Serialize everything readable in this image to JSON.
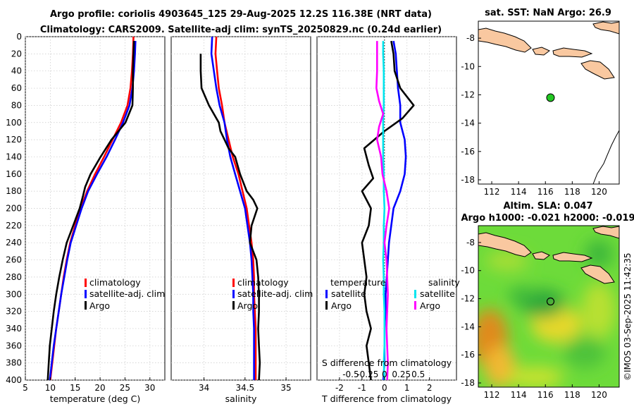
{
  "header": {
    "title_line1": "Argo profile: coriolis 4903645_125 29-Aug-2025 12.2S 116.38E (NRT data)",
    "title_line2": "Climatology: CARS2009. Satellite-adj clim: synTS_20250829.nc (0.24d earlier)"
  },
  "colors": {
    "climatology": "#ff0000",
    "satellite": "#0000ff",
    "argo": "#000000",
    "sat_salinity": "#00e5ee",
    "argo_salinity": "#ff00ff",
    "land": "#f9c8a0",
    "map_green": "#3cc83c"
  },
  "depth_axis": {
    "ticks": [
      "0",
      "20",
      "40",
      "60",
      "80",
      "100",
      "120",
      "140",
      "160",
      "180",
      "200",
      "220",
      "240",
      "260",
      "280",
      "300",
      "320",
      "340",
      "360",
      "380",
      "400"
    ]
  },
  "chart_data": [
    {
      "type": "line",
      "xlabel": "temperature (deg C)",
      "xlim": [
        5,
        33
      ],
      "xticks": [
        "5",
        "10",
        "15",
        "20",
        "25",
        "30"
      ],
      "ylim": [
        0,
        400
      ],
      "legend": [
        "climatology",
        "satellite-adj. clim",
        "Argo"
      ],
      "series": [
        {
          "name": "climatology",
          "points": [
            [
              26.7,
              0
            ],
            [
              26.6,
              20
            ],
            [
              26.4,
              40
            ],
            [
              26.1,
              60
            ],
            [
              25.5,
              80
            ],
            [
              24.2,
              100
            ],
            [
              22.5,
              120
            ],
            [
              20.8,
              140
            ],
            [
              19.0,
              160
            ],
            [
              17.4,
              180
            ],
            [
              16.1,
              200
            ],
            [
              15.0,
              220
            ],
            [
              14.0,
              240
            ],
            [
              13.3,
              260
            ],
            [
              12.7,
              280
            ],
            [
              12.2,
              300
            ],
            [
              11.7,
              320
            ],
            [
              11.2,
              340
            ],
            [
              10.8,
              360
            ],
            [
              10.4,
              380
            ],
            [
              10.0,
              400
            ]
          ]
        },
        {
          "name": "satellite-adj. clim",
          "points": [
            [
              27.1,
              5
            ],
            [
              27.0,
              20
            ],
            [
              26.8,
              40
            ],
            [
              26.5,
              60
            ],
            [
              25.9,
              80
            ],
            [
              24.6,
              100
            ],
            [
              23.0,
              120
            ],
            [
              21.3,
              140
            ],
            [
              19.4,
              160
            ],
            [
              17.6,
              180
            ],
            [
              16.3,
              200
            ],
            [
              15.2,
              220
            ],
            [
              14.1,
              240
            ],
            [
              13.4,
              260
            ],
            [
              12.8,
              280
            ],
            [
              12.2,
              300
            ],
            [
              11.7,
              320
            ],
            [
              11.2,
              340
            ],
            [
              10.7,
              360
            ],
            [
              10.3,
              380
            ],
            [
              9.9,
              400
            ]
          ]
        },
        {
          "name": "Argo",
          "points": [
            [
              26.8,
              5
            ],
            [
              26.7,
              20
            ],
            [
              26.6,
              40
            ],
            [
              26.6,
              60
            ],
            [
              26.5,
              80
            ],
            [
              25.1,
              100
            ],
            [
              22.3,
              120
            ],
            [
              20.1,
              140
            ],
            [
              18.1,
              160
            ],
            [
              17.0,
              175
            ],
            [
              16.6,
              185
            ],
            [
              15.9,
              200
            ],
            [
              14.6,
              220
            ],
            [
              13.3,
              240
            ],
            [
              12.5,
              260
            ],
            [
              11.8,
              280
            ],
            [
              11.2,
              300
            ],
            [
              10.7,
              320
            ],
            [
              10.3,
              340
            ],
            [
              9.9,
              360
            ],
            [
              9.7,
              380
            ],
            [
              9.5,
              400
            ]
          ]
        }
      ]
    },
    {
      "type": "line",
      "xlabel": "salinity",
      "xlim": [
        33.6,
        35.3
      ],
      "xticks": [
        "34",
        "34.5",
        "35"
      ],
      "ylim": [
        0,
        400
      ],
      "legend": [
        "climatology",
        "satellite-adj. clim",
        "Argo"
      ],
      "series": [
        {
          "name": "climatology",
          "points": [
            [
              34.15,
              0
            ],
            [
              34.14,
              20
            ],
            [
              34.16,
              40
            ],
            [
              34.18,
              60
            ],
            [
              34.22,
              80
            ],
            [
              34.25,
              100
            ],
            [
              34.3,
              120
            ],
            [
              34.35,
              140
            ],
            [
              34.42,
              160
            ],
            [
              34.47,
              180
            ],
            [
              34.52,
              200
            ],
            [
              34.55,
              220
            ],
            [
              34.58,
              240
            ],
            [
              34.6,
              260
            ],
            [
              34.61,
              280
            ],
            [
              34.61,
              300
            ],
            [
              34.62,
              320
            ],
            [
              34.63,
              340
            ],
            [
              34.63,
              360
            ],
            [
              34.63,
              380
            ],
            [
              34.63,
              400
            ]
          ]
        },
        {
          "name": "satellite-adj. clim",
          "points": [
            [
              34.1,
              0
            ],
            [
              34.09,
              20
            ],
            [
              34.12,
              40
            ],
            [
              34.15,
              60
            ],
            [
              34.19,
              80
            ],
            [
              34.25,
              100
            ],
            [
              34.28,
              120
            ],
            [
              34.32,
              140
            ],
            [
              34.38,
              160
            ],
            [
              34.44,
              180
            ],
            [
              34.5,
              200
            ],
            [
              34.53,
              220
            ],
            [
              34.56,
              240
            ],
            [
              34.58,
              260
            ],
            [
              34.59,
              280
            ],
            [
              34.6,
              300
            ],
            [
              34.6,
              320
            ],
            [
              34.61,
              340
            ],
            [
              34.61,
              360
            ],
            [
              34.61,
              380
            ],
            [
              34.61,
              400
            ]
          ]
        },
        {
          "name": "Argo",
          "points": [
            [
              33.96,
              20
            ],
            [
              33.96,
              40
            ],
            [
              33.97,
              60
            ],
            [
              34.06,
              80
            ],
            [
              34.18,
              100
            ],
            [
              34.2,
              110
            ],
            [
              34.25,
              120
            ],
            [
              34.3,
              130
            ],
            [
              34.38,
              140
            ],
            [
              34.44,
              160
            ],
            [
              34.52,
              180
            ],
            [
              34.6,
              190
            ],
            [
              34.65,
              200
            ],
            [
              34.58,
              220
            ],
            [
              34.56,
              240
            ],
            [
              34.64,
              260
            ],
            [
              34.66,
              280
            ],
            [
              34.67,
              300
            ],
            [
              34.67,
              320
            ],
            [
              34.66,
              340
            ],
            [
              34.67,
              360
            ],
            [
              34.68,
              380
            ],
            [
              34.67,
              400
            ]
          ]
        }
      ]
    },
    {
      "type": "line",
      "xlabel": "T difference from climatology",
      "xlim": [
        -3,
        3.2
      ],
      "xticks": [
        "-2",
        "-1",
        "0",
        "1",
        "2"
      ],
      "x2label": "S difference from climatology",
      "x2ticks": [
        "-0.5",
        "-0.25",
        "0",
        "0.25",
        "0.5"
      ],
      "ylim": [
        0,
        400
      ],
      "legend_left_title": "temperature",
      "legend_left": [
        "satellite",
        "Argo"
      ],
      "legend_right_title": "salinity",
      "legend_right": [
        "satellite",
        "Argo"
      ],
      "series": [
        {
          "name": "temperature satellite",
          "points": [
            [
              0.4,
              5
            ],
            [
              0.5,
              20
            ],
            [
              0.55,
              40
            ],
            [
              0.6,
              60
            ],
            [
              0.7,
              80
            ],
            [
              0.7,
              100
            ],
            [
              0.9,
              120
            ],
            [
              0.95,
              140
            ],
            [
              0.9,
              160
            ],
            [
              0.7,
              180
            ],
            [
              0.4,
              200
            ],
            [
              0.3,
              220
            ],
            [
              0.2,
              240
            ],
            [
              0.15,
              260
            ],
            [
              0.1,
              280
            ],
            [
              0.05,
              300
            ],
            [
              0.05,
              320
            ],
            [
              0.0,
              340
            ],
            [
              0.0,
              360
            ],
            [
              0.0,
              380
            ],
            [
              -0.05,
              400
            ]
          ]
        },
        {
          "name": "temperature Argo",
          "points": [
            [
              0.3,
              5
            ],
            [
              0.4,
              20
            ],
            [
              0.45,
              40
            ],
            [
              0.7,
              60
            ],
            [
              1.3,
              80
            ],
            [
              0.8,
              95
            ],
            [
              0.0,
              110
            ],
            [
              -0.9,
              130
            ],
            [
              -0.7,
              150
            ],
            [
              -0.5,
              165
            ],
            [
              -1.0,
              180
            ],
            [
              -0.6,
              200
            ],
            [
              -0.7,
              220
            ],
            [
              -1.0,
              240
            ],
            [
              -0.9,
              260
            ],
            [
              -0.8,
              280
            ],
            [
              -0.9,
              300
            ],
            [
              -0.8,
              320
            ],
            [
              -0.6,
              340
            ],
            [
              -0.8,
              360
            ],
            [
              -0.7,
              380
            ],
            [
              -0.6,
              400
            ]
          ]
        },
        {
          "name": "salinity satellite",
          "points": [
            [
              -0.02,
              5
            ],
            [
              -0.02,
              20
            ],
            [
              -0.01,
              40
            ],
            [
              -0.01,
              60
            ],
            [
              -0.01,
              80
            ],
            [
              -0.02,
              100
            ],
            [
              -0.02,
              120
            ],
            [
              -0.02,
              140
            ],
            [
              -0.01,
              160
            ],
            [
              -0.01,
              180
            ],
            [
              0.0,
              200
            ],
            [
              -0.01,
              220
            ],
            [
              -0.01,
              240
            ],
            [
              -0.02,
              260
            ],
            [
              -0.01,
              280
            ],
            [
              -0.01,
              300
            ],
            [
              0.0,
              320
            ],
            [
              0.0,
              340
            ],
            [
              0.0,
              360
            ],
            [
              -0.01,
              380
            ],
            [
              0.0,
              400
            ]
          ]
        },
        {
          "name": "salinity Argo",
          "points": [
            [
              -0.11,
              5
            ],
            [
              -0.11,
              20
            ],
            [
              -0.11,
              40
            ],
            [
              -0.12,
              60
            ],
            [
              -0.08,
              75
            ],
            [
              -0.02,
              90
            ],
            [
              -0.08,
              105
            ],
            [
              -0.11,
              120
            ],
            [
              -0.05,
              140
            ],
            [
              -0.03,
              160
            ],
            [
              0.03,
              180
            ],
            [
              0.07,
              200
            ],
            [
              0.03,
              220
            ],
            [
              0.0,
              240
            ],
            [
              0.03,
              260
            ],
            [
              0.04,
              280
            ],
            [
              0.05,
              300
            ],
            [
              0.04,
              320
            ],
            [
              0.03,
              340
            ],
            [
              0.04,
              360
            ],
            [
              0.05,
              380
            ],
            [
              0.04,
              400
            ]
          ]
        }
      ]
    },
    {
      "type": "map",
      "title": "sat. SST: NaN Argo: 26.9",
      "xticks": [
        "112",
        "114",
        "116",
        "118",
        "120"
      ],
      "yticks": [
        "-8",
        "-10",
        "-12",
        "-14",
        "-16",
        "-18"
      ],
      "xlim": [
        111,
        121.5
      ],
      "ylim": [
        -18.3,
        -6.8
      ],
      "argo_position": [
        116.38,
        -12.2
      ]
    },
    {
      "type": "heatmap",
      "title_line1": "Altim. SLA: 0.047",
      "title_line2": "Argo h1000: -0.021 h2000: -0.019",
      "xticks": [
        "112",
        "114",
        "116",
        "118",
        "120"
      ],
      "yticks": [
        "-8",
        "-10",
        "-12",
        "-14",
        "-16",
        "-18"
      ],
      "xlim": [
        111,
        121.5
      ],
      "ylim": [
        -18.3,
        -6.8
      ],
      "argo_position": [
        116.38,
        -12.2
      ]
    }
  ],
  "copyright": "©IMOS 03-Sep-2025 11:42:35"
}
